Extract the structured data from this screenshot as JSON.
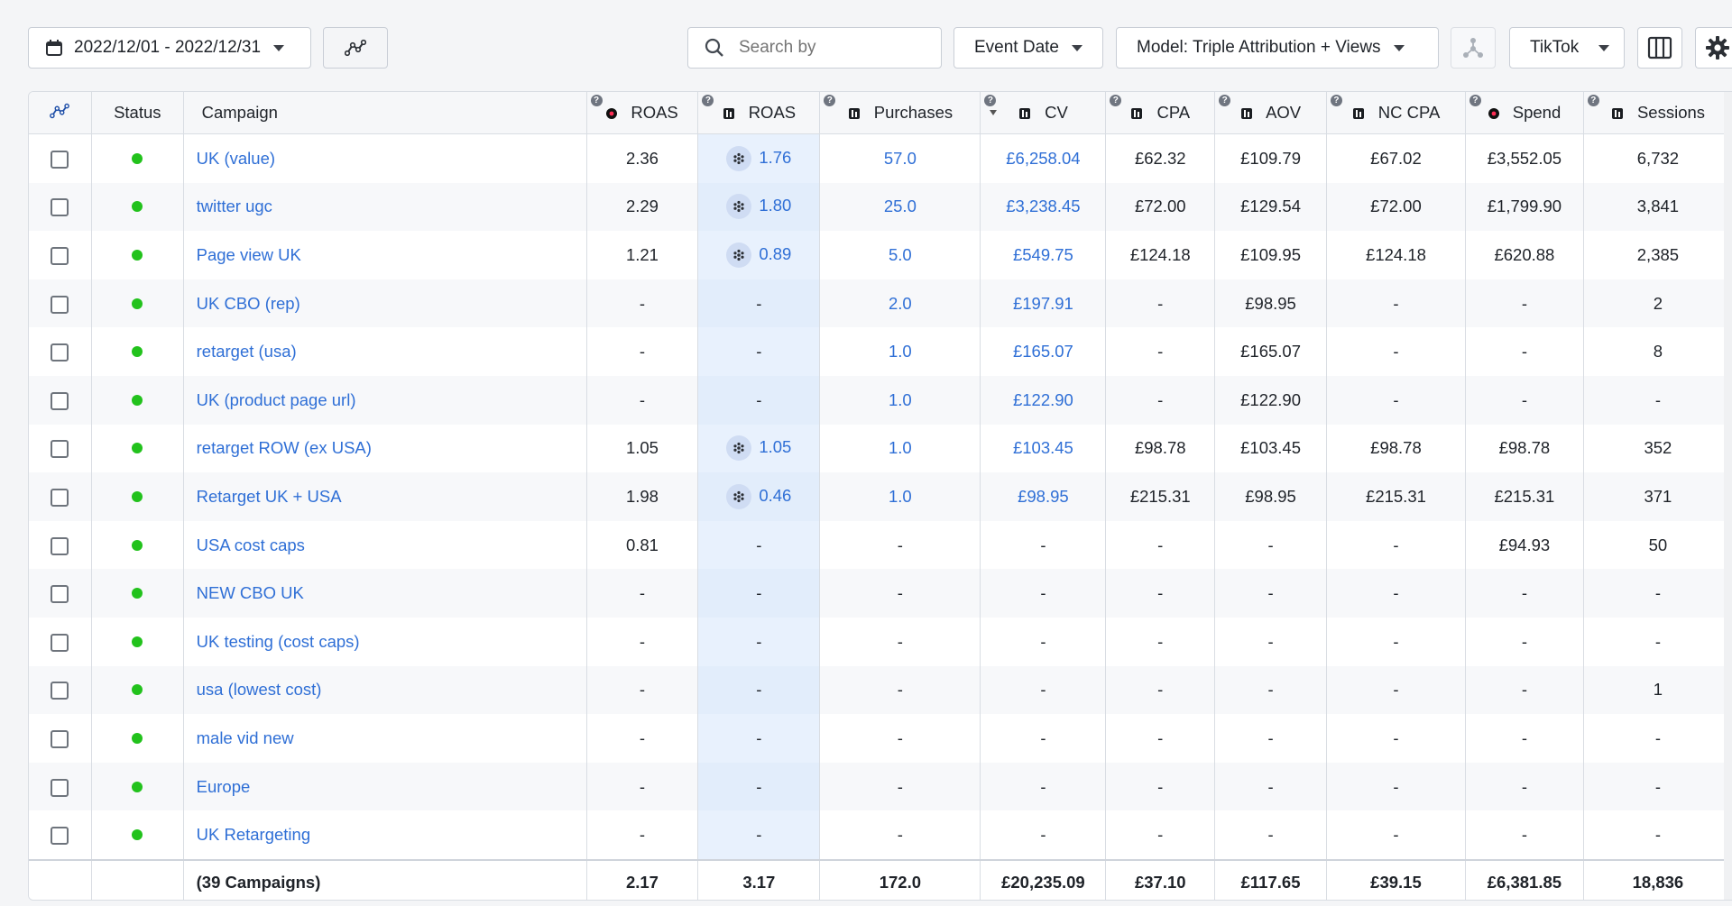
{
  "toolbar": {
    "date_range": "2022/12/01 - 2022/12/31",
    "search_placeholder": "Search by",
    "date_type": "Event Date",
    "model": "Model: Triple Attribution + Views",
    "channel": "TikTok"
  },
  "columns": {
    "status": "Status",
    "campaign": "Campaign",
    "roas": "ROAS",
    "roas_pixel": "ROAS",
    "purchases": "Purchases",
    "cv": "CV",
    "cpa": "CPA",
    "aov": "AOV",
    "nc_cpa": "NC CPA",
    "spend": "Spend",
    "sessions": "Sessions"
  },
  "colors": {
    "active_dot": "#22c21c",
    "link": "#2f6fd6",
    "pixel_col": "#e8f1fd"
  },
  "rows": [
    {
      "campaign": "UK (value)",
      "roas": "2.36",
      "roas_pixel": "1.76",
      "purchases": "57.0",
      "cv": "£6,258.04",
      "cpa": "£62.32",
      "aov": "£109.79",
      "nc_cpa": "£67.02",
      "spend": "£3,552.05",
      "sessions": "6,732"
    },
    {
      "campaign": "twitter ugc",
      "roas": "2.29",
      "roas_pixel": "1.80",
      "purchases": "25.0",
      "cv": "£3,238.45",
      "cpa": "£72.00",
      "aov": "£129.54",
      "nc_cpa": "£72.00",
      "spend": "£1,799.90",
      "sessions": "3,841"
    },
    {
      "campaign": "Page view UK",
      "roas": "1.21",
      "roas_pixel": "0.89",
      "purchases": "5.0",
      "cv": "£549.75",
      "cpa": "£124.18",
      "aov": "£109.95",
      "nc_cpa": "£124.18",
      "spend": "£620.88",
      "sessions": "2,385"
    },
    {
      "campaign": "UK CBO (rep)",
      "roas": "-",
      "roas_pixel": "-",
      "purchases": "2.0",
      "cv": "£197.91",
      "cpa": "-",
      "aov": "£98.95",
      "nc_cpa": "-",
      "spend": "-",
      "sessions": "2"
    },
    {
      "campaign": "retarget (usa)",
      "roas": "-",
      "roas_pixel": "-",
      "purchases": "1.0",
      "cv": "£165.07",
      "cpa": "-",
      "aov": "£165.07",
      "nc_cpa": "-",
      "spend": "-",
      "sessions": "8"
    },
    {
      "campaign": "UK (product page url)",
      "roas": "-",
      "roas_pixel": "-",
      "purchases": "1.0",
      "cv": "£122.90",
      "cpa": "-",
      "aov": "£122.90",
      "nc_cpa": "-",
      "spend": "-",
      "sessions": "-"
    },
    {
      "campaign": "retarget ROW (ex USA)",
      "roas": "1.05",
      "roas_pixel": "1.05",
      "purchases": "1.0",
      "cv": "£103.45",
      "cpa": "£98.78",
      "aov": "£103.45",
      "nc_cpa": "£98.78",
      "spend": "£98.78",
      "sessions": "352"
    },
    {
      "campaign": "Retarget UK + USA",
      "roas": "1.98",
      "roas_pixel": "0.46",
      "purchases": "1.0",
      "cv": "£98.95",
      "cpa": "£215.31",
      "aov": "£98.95",
      "nc_cpa": "£215.31",
      "spend": "£215.31",
      "sessions": "371"
    },
    {
      "campaign": "USA cost caps",
      "roas": "0.81",
      "roas_pixel": "-",
      "purchases": "-",
      "cv": "-",
      "cpa": "-",
      "aov": "-",
      "nc_cpa": "-",
      "spend": "£94.93",
      "sessions": "50"
    },
    {
      "campaign": "NEW CBO UK",
      "roas": "-",
      "roas_pixel": "-",
      "purchases": "-",
      "cv": "-",
      "cpa": "-",
      "aov": "-",
      "nc_cpa": "-",
      "spend": "-",
      "sessions": "-"
    },
    {
      "campaign": "UK testing (cost caps)",
      "roas": "-",
      "roas_pixel": "-",
      "purchases": "-",
      "cv": "-",
      "cpa": "-",
      "aov": "-",
      "nc_cpa": "-",
      "spend": "-",
      "sessions": "-"
    },
    {
      "campaign": "usa (lowest cost)",
      "roas": "-",
      "roas_pixel": "-",
      "purchases": "-",
      "cv": "-",
      "cpa": "-",
      "aov": "-",
      "nc_cpa": "-",
      "spend": "-",
      "sessions": "1"
    },
    {
      "campaign": "male vid new",
      "roas": "-",
      "roas_pixel": "-",
      "purchases": "-",
      "cv": "-",
      "cpa": "-",
      "aov": "-",
      "nc_cpa": "-",
      "spend": "-",
      "sessions": "-"
    },
    {
      "campaign": "Europe",
      "roas": "-",
      "roas_pixel": "-",
      "purchases": "-",
      "cv": "-",
      "cpa": "-",
      "aov": "-",
      "nc_cpa": "-",
      "spend": "-",
      "sessions": "-"
    },
    {
      "campaign": "UK Retargeting",
      "roas": "-",
      "roas_pixel": "-",
      "purchases": "-",
      "cv": "-",
      "cpa": "-",
      "aov": "-",
      "nc_cpa": "-",
      "spend": "-",
      "sessions": "-"
    }
  ],
  "totals": {
    "campaign": "(39 Campaigns)",
    "roas": "2.17",
    "roas_pixel": "3.17",
    "purchases": "172.0",
    "cv": "£20,235.09",
    "cpa": "£37.10",
    "aov": "£117.65",
    "nc_cpa": "£39.15",
    "spend": "£6,381.85",
    "sessions": "18,836"
  }
}
